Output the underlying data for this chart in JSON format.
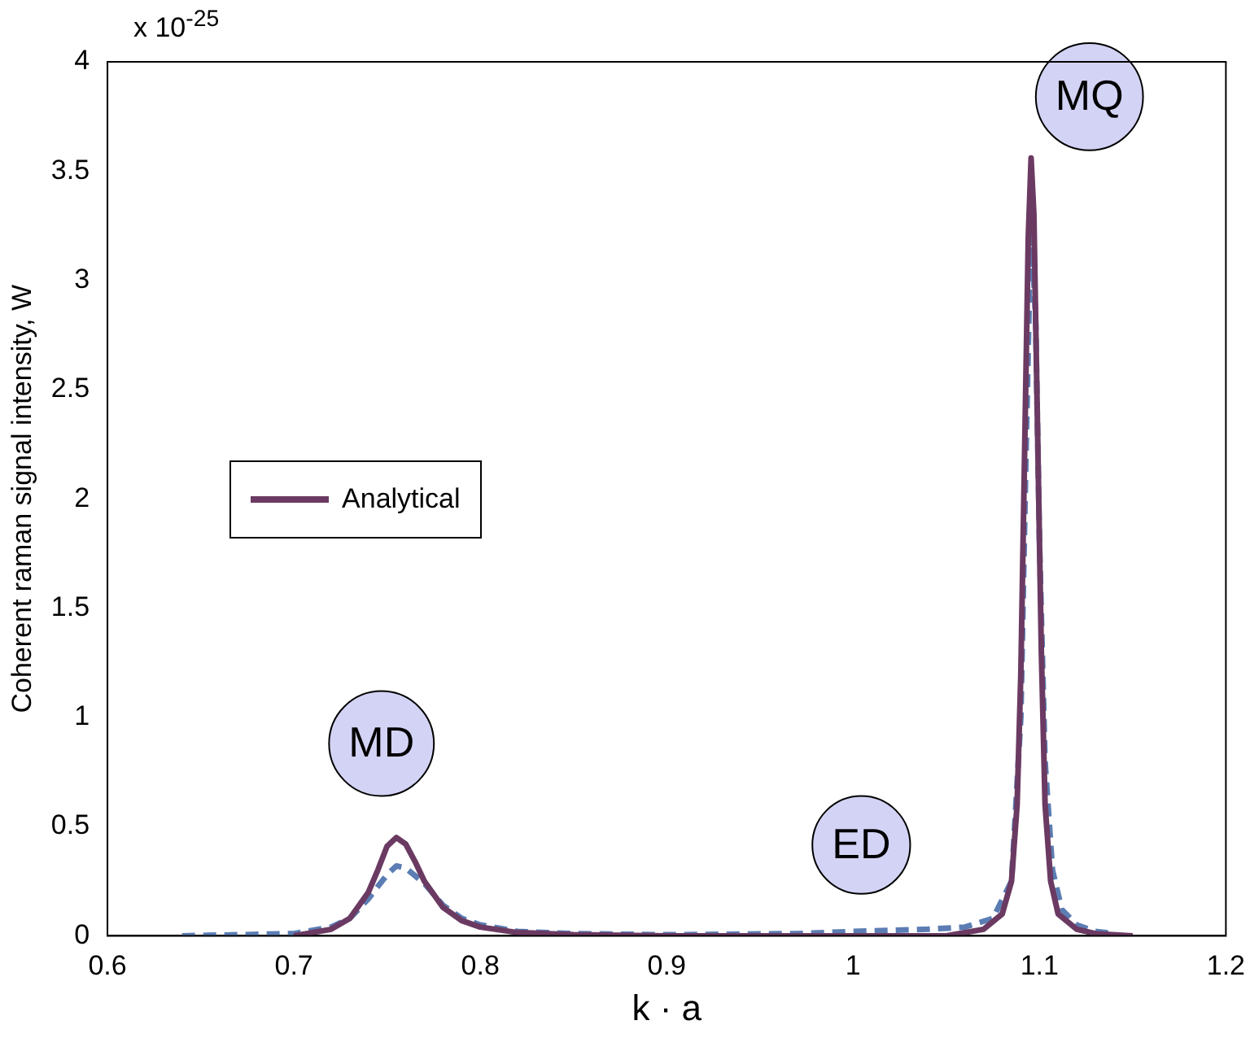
{
  "chart_data": {
    "type": "line",
    "xlabel": "k · a",
    "ylabel": "Coherent raman signal intensity, W",
    "xlim": [
      0.6,
      1.2
    ],
    "xticks": [
      0.6,
      0.7,
      0.8,
      0.9,
      1,
      1.1,
      1.2
    ],
    "ylim": [
      0,
      4
    ],
    "yticks": [
      0,
      0.5,
      1,
      1.5,
      2,
      2.5,
      3,
      3.5,
      4
    ],
    "grid": false,
    "legend": "center left",
    "annotations": [
      "x 10$^{-25}$",
      "MD",
      "ED",
      "MQ"
    ],
    "series": [
      {
        "name": "Analytical",
        "color": "#6b3a62",
        "line_style": "solid",
        "x": [
          0.7,
          0.72,
          0.73,
          0.74,
          0.745,
          0.75,
          0.755,
          0.76,
          0.765,
          0.77,
          0.78,
          0.79,
          0.8,
          0.82,
          0.85,
          0.9,
          1.0,
          1.05,
          1.07,
          1.08,
          1.085,
          1.088,
          1.09,
          1.092,
          1.094,
          1.0955,
          1.097,
          1.099,
          1.101,
          1.103,
          1.106,
          1.11,
          1.12,
          1.13,
          1.15
        ],
        "values": [
          0,
          0.03,
          0.08,
          0.2,
          0.3,
          0.41,
          0.45,
          0.42,
          0.34,
          0.25,
          0.13,
          0.07,
          0.04,
          0.015,
          0.005,
          0,
          0,
          0,
          0.03,
          0.1,
          0.25,
          0.6,
          1.2,
          2.2,
          3.2,
          3.56,
          3.3,
          2.3,
          1.3,
          0.6,
          0.25,
          0.1,
          0.03,
          0.01,
          0
        ]
      },
      {
        "color": "#5b7db3",
        "line_style": "dashed",
        "x": [
          0.64,
          0.7,
          0.72,
          0.73,
          0.74,
          0.75,
          0.755,
          0.76,
          0.77,
          0.78,
          0.79,
          0.8,
          0.82,
          0.85,
          0.9,
          0.97,
          1.0,
          1.04,
          1.06,
          1.075,
          1.085,
          1.09,
          1.093,
          1.0955,
          1.098,
          1.1,
          1.103,
          1.107,
          1.112,
          1.12,
          1.13,
          1.14
        ],
        "values": [
          0,
          0.01,
          0.04,
          0.08,
          0.17,
          0.28,
          0.32,
          0.31,
          0.24,
          0.14,
          0.08,
          0.05,
          0.02,
          0.01,
          0.005,
          0.01,
          0.02,
          0.03,
          0.04,
          0.08,
          0.25,
          1.0,
          2.3,
          3.3,
          2.8,
          1.8,
          0.8,
          0.3,
          0.12,
          0.05,
          0.02,
          0.01
        ]
      }
    ]
  }
}
